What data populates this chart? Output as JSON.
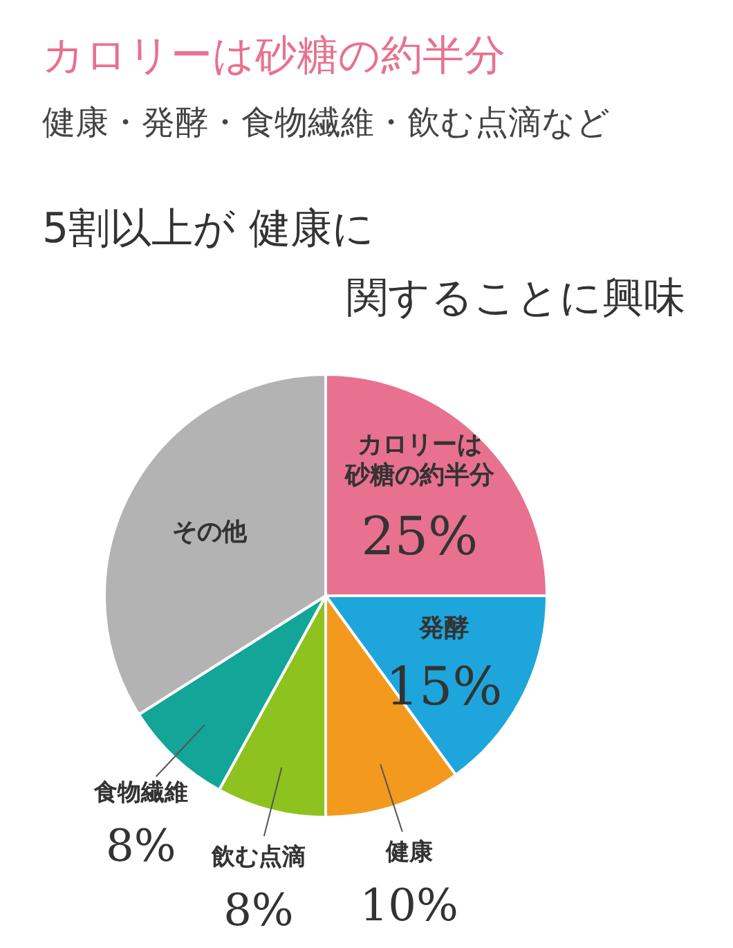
{
  "chart_data": {
    "type": "pie",
    "title": "カロリーは砂糖の約半分",
    "subtitle": "健康・発酵・食物繊維・飲む点滴など",
    "annotations": [
      "5割以上が 健康に",
      "関することに興味"
    ],
    "categories": [
      "カロリーは砂糖の約半分",
      "発酵",
      "健康",
      "飲む点滴",
      "食物繊維",
      "その他"
    ],
    "values": [
      25,
      15,
      10,
      8,
      8,
      34
    ],
    "value_labels": [
      "25%",
      "15%",
      "10%",
      "8%",
      "8%",
      null
    ],
    "colors": [
      "#e8718f",
      "#1ea6dc",
      "#f39a1e",
      "#8dc21f",
      "#12a598",
      "#b3b3b3"
    ]
  }
}
